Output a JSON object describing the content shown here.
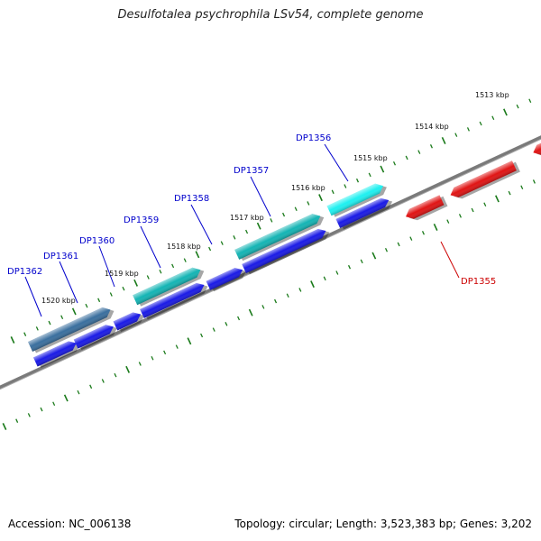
{
  "title": "Desulfotalea psychrophila LSv54, complete genome",
  "footer": {
    "accession": "Accession: NC_006138",
    "summary": "Topology: circular; Length: 3,523,383 bp; Genes: 3,202"
  },
  "ruler_labels": [
    "1513 kbp",
    "1514 kbp",
    "1515 kbp",
    "1516 kbp",
    "1517 kbp",
    "1518 kbp",
    "1519 kbp",
    "1520 kbp"
  ],
  "gene_labels": [
    "DP1362",
    "DP1361",
    "DP1360",
    "DP1359",
    "DP1358",
    "DP1357",
    "DP1356",
    "DP1355"
  ],
  "colors": {
    "backbone": "#7f7f7f",
    "tick": "#1a7a1a",
    "forward_gene": "#1a1ae6",
    "reverse_gene": "#e01414",
    "label_forward": "#0000cc",
    "label_reverse": "#cc0000",
    "highlight_dark": "#3a6f9e",
    "highlight_teal": "#14b4b4",
    "highlight_cyan": "#1ef0f0"
  }
}
